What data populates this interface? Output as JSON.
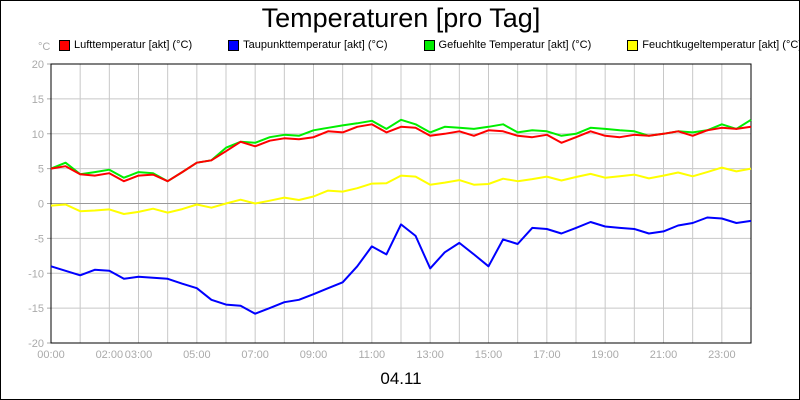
{
  "chart_data": {
    "type": "line",
    "title": "Temperaturen [pro Tag]",
    "xlabel": "04.11",
    "ylabel": "°C",
    "ylim": [
      -20,
      20
    ],
    "xlim": [
      0,
      24
    ],
    "grid": true,
    "legend_position": "top",
    "yticks": [
      20,
      15,
      10,
      5,
      0,
      -5,
      -10,
      -15,
      -20
    ],
    "xticks": [
      {
        "h": 0,
        "label": "00:00"
      },
      {
        "h": 2,
        "label": "02:00"
      },
      {
        "h": 3,
        "label": "03:00"
      },
      {
        "h": 5,
        "label": "05:00"
      },
      {
        "h": 7,
        "label": "07:00"
      },
      {
        "h": 9,
        "label": "09:00"
      },
      {
        "h": 11,
        "label": "11:00"
      },
      {
        "h": 13,
        "label": "13:00"
      },
      {
        "h": 15,
        "label": "15:00"
      },
      {
        "h": 17,
        "label": "17:00"
      },
      {
        "h": 19,
        "label": "19:00"
      },
      {
        "h": 21,
        "label": "21:00"
      },
      {
        "h": 23,
        "label": "23:00"
      }
    ],
    "x_step_hours": 0.5,
    "series": [
      {
        "name": "Lufttemperatur [akt] (°C)",
        "color": "#ff0000",
        "values": [
          5,
          5,
          4.5,
          4,
          4,
          3.5,
          4,
          3.8,
          3.5,
          4.5,
          5.5,
          6.5,
          7.5,
          8.5,
          8.5,
          9,
          9,
          9.5,
          9.5,
          10,
          10.5,
          11,
          11,
          10.5,
          11,
          10.5,
          10,
          10,
          10,
          10,
          10.5,
          10,
          10,
          9.5,
          9.5,
          9,
          9.5,
          10,
          10,
          9.5,
          9.5,
          10,
          10,
          10,
          10,
          10.5,
          10.5,
          11,
          11
        ]
      },
      {
        "name": "Taupunkttemperatur [akt] (°C)",
        "color": "#0000ff",
        "values": [
          -9,
          -10,
          -10,
          -9.5,
          -10,
          -10.5,
          -10.5,
          -11,
          -10.5,
          -11.5,
          -12.5,
          -13.5,
          -14.5,
          -15,
          -15.5,
          -15,
          -14.5,
          -13.5,
          -13,
          -12.5,
          -11,
          -9,
          -6.5,
          -7,
          -3,
          -5,
          -9,
          -7,
          -6,
          -7,
          -9,
          -5.5,
          -5.5,
          -3.5,
          -4,
          -4,
          -3.5,
          -3,
          -3,
          -3.5,
          -4,
          -4,
          -4,
          -3.5,
          -2.5,
          -2,
          -2.5,
          -2.5,
          -2.5
        ]
      },
      {
        "name": "Gefuehlte Temperatur [akt] (°C)",
        "color": "#00ee00",
        "values": [
          5,
          5.5,
          4.5,
          4.5,
          4.5,
          4,
          4.5,
          4,
          3.5,
          4.5,
          5.5,
          6.5,
          8,
          8.5,
          9,
          9.5,
          9.5,
          10,
          10.5,
          10.5,
          11.5,
          11.5,
          11.5,
          11,
          12,
          11,
          10.5,
          11,
          10.5,
          11,
          11,
          11,
          10.5,
          10.5,
          10,
          10,
          10,
          10.5,
          11,
          10.5,
          10,
          10,
          10,
          10,
          10.5,
          10.5,
          11,
          11,
          12
        ]
      },
      {
        "name": "Feuchtkugeltemperatur [akt] (°C)",
        "color": "#ffff00",
        "values": [
          -0.3,
          -0.5,
          -0.8,
          -1,
          -1.2,
          -1.2,
          -1.2,
          -1.1,
          -1,
          -0.8,
          -0.5,
          -0.3,
          0,
          0.2,
          0.3,
          0.4,
          0.5,
          0.8,
          1,
          1.5,
          2,
          2.2,
          2.5,
          3.2,
          4,
          3.5,
          3,
          3,
          3,
          3,
          2.8,
          3.2,
          3.5,
          3.5,
          3.5,
          3.6,
          3.8,
          3.9,
          4,
          3.9,
          3.8,
          3.9,
          4,
          4.1,
          4.2,
          4.5,
          4.8,
          4.9,
          5
        ]
      }
    ]
  }
}
